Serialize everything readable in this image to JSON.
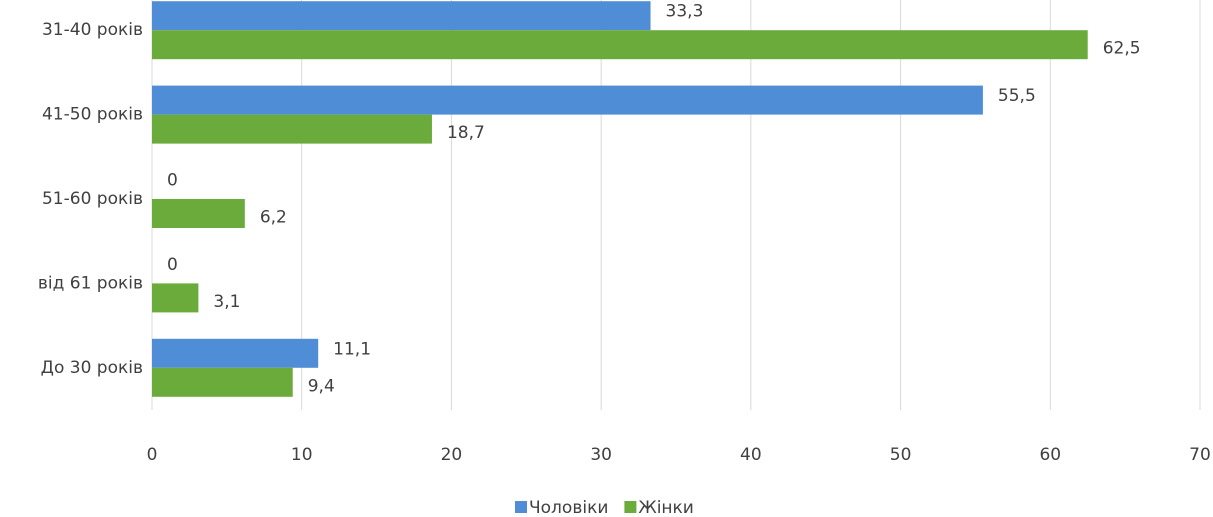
{
  "chart_data": {
    "type": "hbar",
    "categories": [
      "31-40 років",
      "41-50 років",
      "51-60 років",
      "від 61 років",
      "До 30 років"
    ],
    "series": [
      {
        "name": "Чоловіки",
        "color": "#4f8ed6",
        "values": [
          33.3,
          55.5,
          0,
          0,
          11.1
        ],
        "value_labels": [
          "33,3",
          "55,5",
          "0",
          "0",
          "11,1"
        ]
      },
      {
        "name": "Жінки",
        "color": "#6aab3c",
        "values": [
          62.5,
          18.7,
          6.2,
          3.1,
          9.4
        ],
        "value_labels": [
          "62,5",
          "18,7",
          "6,2",
          "3,1",
          "9,4"
        ]
      }
    ],
    "xlim": [
      0,
      70
    ],
    "xticks": [
      0,
      10,
      20,
      30,
      40,
      50,
      60,
      70
    ],
    "grid": true,
    "legend": "bottom"
  }
}
